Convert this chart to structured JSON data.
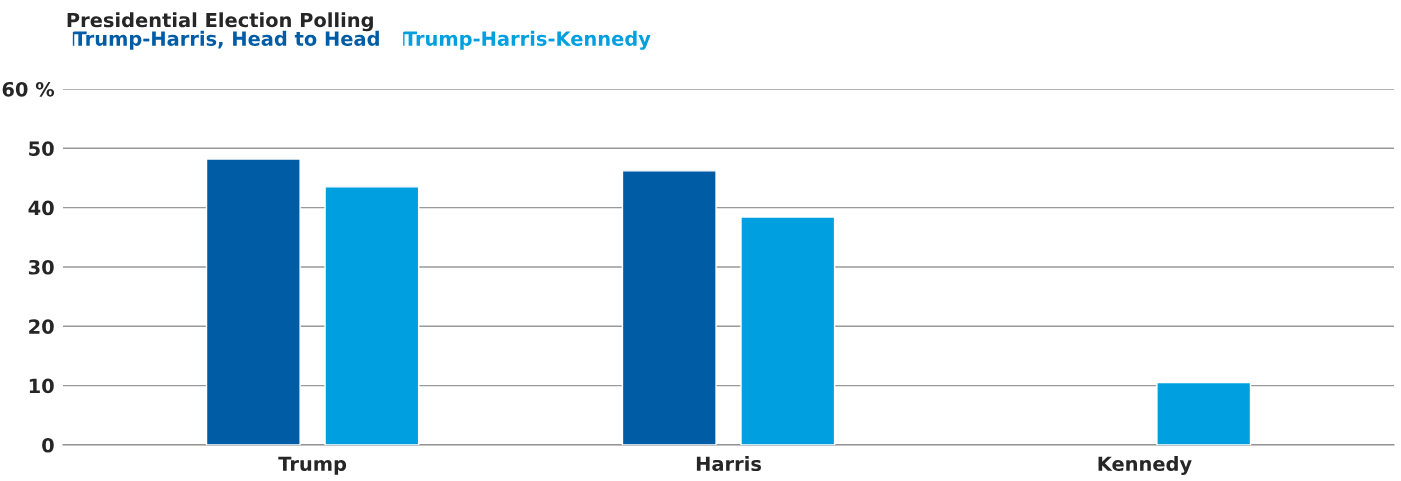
{
  "chart_data": {
    "type": "bar",
    "title": "Presidential Election Polling",
    "categories": [
      "Trump",
      "Harris",
      "Kennedy"
    ],
    "series": [
      {
        "name": "Trump-Harris, Head to Head",
        "color": "#005ca4",
        "values": [
          48.2,
          46.2,
          null
        ]
      },
      {
        "name": "Trump-Harris-Kennedy",
        "color": "#00a0e0",
        "values": [
          43.5,
          38.4,
          10.5
        ]
      }
    ],
    "ylim": [
      0,
      60
    ],
    "yticks": [
      0,
      10,
      20,
      30,
      40,
      50,
      {
        "value": 60,
        "label": "60 %"
      }
    ],
    "grid": "y",
    "legend": "top left"
  }
}
